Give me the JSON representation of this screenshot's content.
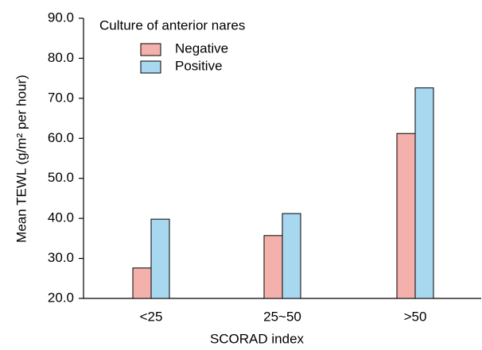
{
  "chart_data": {
    "type": "bar",
    "x_label": "SCORAD index",
    "y_label": "Mean TEWL (g/m² per hour)",
    "legend_title": "Culture of anterior nares",
    "categories": [
      "<25",
      "25~50",
      ">50"
    ],
    "series": [
      {
        "name": "Negative",
        "color": "#f4b1ac",
        "values": [
          27.6,
          35.7,
          61.2
        ]
      },
      {
        "name": "Positive",
        "color": "#a8d8f0",
        "values": [
          39.8,
          41.2,
          72.6
        ]
      }
    ],
    "ylim": [
      20,
      90
    ],
    "yticks": [
      {
        "value": 20,
        "label": "20.0"
      },
      {
        "value": 30,
        "label": "30.0"
      },
      {
        "value": 40,
        "label": "40.0"
      },
      {
        "value": 50,
        "label": "50.0"
      },
      {
        "value": 60,
        "label": "60.0"
      },
      {
        "value": 70,
        "label": "70.0"
      },
      {
        "value": 80,
        "label": "80.0"
      },
      {
        "value": 90,
        "label": "90.0"
      }
    ],
    "grid": false,
    "legend_position": "upper left"
  }
}
